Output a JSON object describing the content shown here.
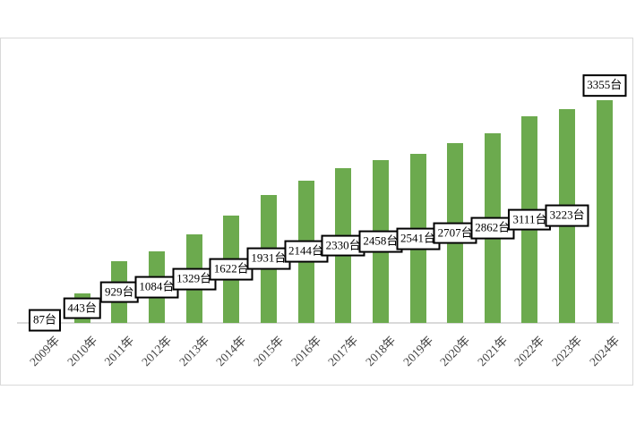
{
  "chart_data": {
    "type": "bar",
    "title": "",
    "xlabel": "",
    "ylabel": "",
    "categories": [
      "2009年",
      "2010年",
      "2011年",
      "2012年",
      "2013年",
      "2014年",
      "2015年",
      "2016年",
      "2017年",
      "2018年",
      "2019年",
      "2020年",
      "2021年",
      "2022年",
      "2023年",
      "2024年"
    ],
    "values": [
      87,
      443,
      929,
      1084,
      1329,
      1622,
      1931,
      2144,
      2330,
      2458,
      2541,
      2707,
      2862,
      3111,
      3223,
      3355
    ],
    "data_labels": [
      "87台",
      "443台",
      "929台",
      "1084台",
      "1329台",
      "1622台",
      "1931台",
      "2144台",
      "2330台",
      "2458台",
      "2541台",
      "2707台",
      "2862台",
      "3111台",
      "3223台",
      "3355台"
    ],
    "unit_suffix": "台",
    "ylim": [
      0,
      3500
    ],
    "grid": false,
    "legend": false,
    "colors": {
      "bar": "#6caa4e",
      "axis_line": "#d9d9d9",
      "frame_border": "#d9d9d9",
      "label_box_bg": "#ffffff",
      "label_box_border": "#000000",
      "label_text": "#000000",
      "tick_text": "#3f3f3f"
    },
    "layout_hints": {
      "data_label_position": "inside-center of each bar, last year label above bar top",
      "x_tick_rotation_deg": 45
    }
  }
}
